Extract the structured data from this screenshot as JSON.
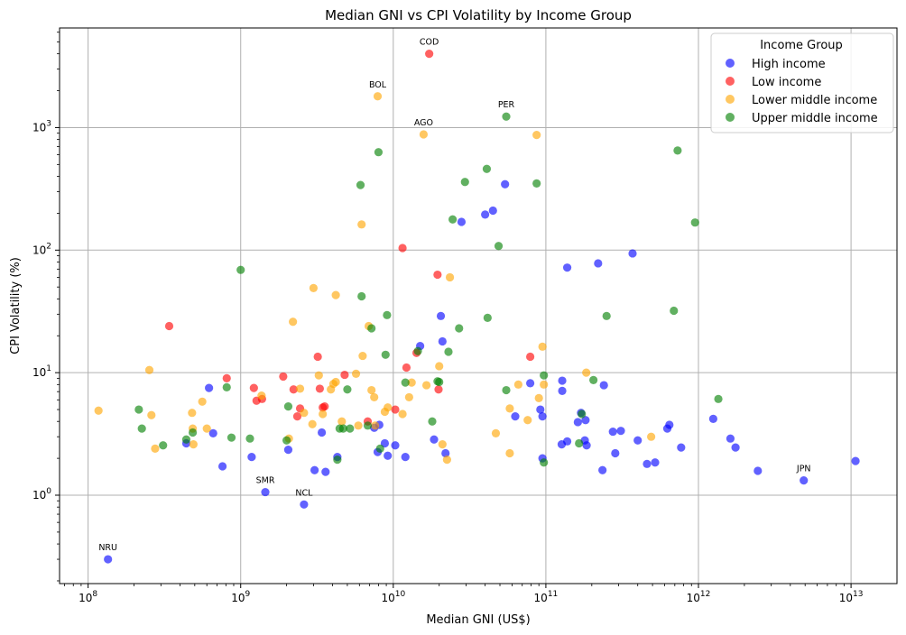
{
  "chart_data": {
    "type": "scatter",
    "title": "Median GNI vs CPI Volatility by Income Group",
    "xlabel": "Median GNI (US$)",
    "ylabel": "CPI Volatility (%)",
    "xscale": "log",
    "yscale": "log",
    "xlim": [
      65000000.0,
      20000000000000.0
    ],
    "ylim": [
      0.19,
      6500
    ],
    "grid": true,
    "legend_title": "Income Group",
    "legend_position": "top-right",
    "x_ticks": [
      {
        "value": 100000000.0,
        "base": "10",
        "exp": "8"
      },
      {
        "value": 1000000000.0,
        "base": "10",
        "exp": "9"
      },
      {
        "value": 10000000000.0,
        "base": "10",
        "exp": "10"
      },
      {
        "value": 100000000000.0,
        "base": "10",
        "exp": "11"
      },
      {
        "value": 1000000000000.0,
        "base": "10",
        "exp": "12"
      },
      {
        "value": 10000000000000.0,
        "base": "10",
        "exp": "13"
      }
    ],
    "y_ticks": [
      {
        "value": 1,
        "base": "10",
        "exp": "0"
      },
      {
        "value": 10,
        "base": "10",
        "exp": "1"
      },
      {
        "value": 100,
        "base": "10",
        "exp": "2"
      },
      {
        "value": 1000,
        "base": "10",
        "exp": "3"
      }
    ],
    "annotations": [
      {
        "text": "COD",
        "x": 17200000000.0,
        "y": 4000
      },
      {
        "text": "BOL",
        "x": 7900000000.0,
        "y": 1800
      },
      {
        "text": "AGO",
        "x": 15800000000.0,
        "y": 880
      },
      {
        "text": "PER",
        "x": 55000000000.0,
        "y": 1230
      },
      {
        "text": "SMR",
        "x": 1450000000.0,
        "y": 1.06
      },
      {
        "text": "NCL",
        "x": 2600000000.0,
        "y": 0.84
      },
      {
        "text": "NRU",
        "x": 135000000.0,
        "y": 0.3
      },
      {
        "text": "JPN",
        "x": 4900000000000.0,
        "y": 1.32
      }
    ],
    "series": [
      {
        "name": "High income",
        "color": "#0000ff",
        "points": [
          [
            135000000.0,
            0.3
          ],
          [
            1450000000.0,
            1.06
          ],
          [
            2600000000.0,
            0.84
          ],
          [
            4900000000000.0,
            1.32
          ],
          [
            10700000000000.0,
            1.9
          ],
          [
            2450000000000.0,
            1.58
          ],
          [
            1750000000000.0,
            2.45
          ],
          [
            1620000000000.0,
            2.9
          ],
          [
            1250000000000.0,
            4.2
          ],
          [
            770000000000.0,
            2.45
          ],
          [
            645000000000.0,
            3.75
          ],
          [
            625000000000.0,
            3.5
          ],
          [
            520000000000.0,
            1.85
          ],
          [
            460000000000.0,
            1.8
          ],
          [
            400000000000.0,
            2.8
          ],
          [
            370000000000.0,
            94
          ],
          [
            310000000000.0,
            3.35
          ],
          [
            285000000000.0,
            2.2
          ],
          [
            275000000000.0,
            3.3
          ],
          [
            240000000000.0,
            7.9
          ],
          [
            235000000000.0,
            1.6
          ],
          [
            220000000000.0,
            78
          ],
          [
            185000000000.0,
            2.55
          ],
          [
            182000000000.0,
            4.1
          ],
          [
            180000000000.0,
            2.8
          ],
          [
            170000000000.0,
            4.7
          ],
          [
            162000000000.0,
            3.95
          ],
          [
            138000000000.0,
            2.75
          ],
          [
            138000000000.0,
            72
          ],
          [
            128000000000.0,
            8.6
          ],
          [
            128000000000.0,
            7.1
          ],
          [
            127000000000.0,
            2.6
          ],
          [
            95000000000.0,
            2.0
          ],
          [
            95000000000.0,
            4.4
          ],
          [
            92000000000.0,
            5.0
          ],
          [
            79000000000.0,
            8.2
          ],
          [
            63000000000.0,
            4.4
          ],
          [
            54000000000.0,
            345
          ],
          [
            45000000000.0,
            210
          ],
          [
            40000000000.0,
            195
          ],
          [
            28000000000.0,
            170
          ],
          [
            22000000000.0,
            2.2
          ],
          [
            21000000000.0,
            18
          ],
          [
            20500000000.0,
            29
          ],
          [
            18500000000.0,
            2.85
          ],
          [
            15000000000.0,
            16.5
          ],
          [
            12000000000.0,
            2.05
          ],
          [
            10300000000.0,
            2.55
          ],
          [
            9200000000.0,
            2.1
          ],
          [
            8800000000.0,
            2.65
          ],
          [
            8100000000.0,
            3.75
          ],
          [
            7900000000.0,
            2.25
          ],
          [
            7500000000.0,
            3.55
          ],
          [
            4300000000.0,
            2.05
          ],
          [
            3600000000.0,
            1.55
          ],
          [
            3400000000.0,
            3.25
          ],
          [
            3050000000.0,
            1.6
          ],
          [
            2050000000.0,
            2.35
          ],
          [
            1180000000.0,
            2.05
          ],
          [
            760000000.0,
            1.72
          ],
          [
            660000000.0,
            3.2
          ],
          [
            620000000.0,
            7.5
          ],
          [
            440000000.0,
            2.65
          ]
        ]
      },
      {
        "name": "Low income",
        "color": "#ff0000",
        "points": [
          [
            17200000000.0,
            4000
          ],
          [
            340000000.0,
            24
          ],
          [
            810000000.0,
            9.0
          ],
          [
            1220000000.0,
            7.5
          ],
          [
            1270000000.0,
            5.9
          ],
          [
            1380000000.0,
            6.1
          ],
          [
            1900000000.0,
            9.3
          ],
          [
            2220000000.0,
            7.3
          ],
          [
            2350000000.0,
            4.4
          ],
          [
            2450000000.0,
            5.1
          ],
          [
            3200000000.0,
            13.5
          ],
          [
            3300000000.0,
            7.4
          ],
          [
            3450000000.0,
            5.2
          ],
          [
            3550000000.0,
            5.3
          ],
          [
            4800000000.0,
            9.6
          ],
          [
            6800000000.0,
            4.0
          ],
          [
            10300000000.0,
            5.0
          ],
          [
            11500000000.0,
            104
          ],
          [
            12200000000.0,
            11
          ],
          [
            14200000000.0,
            14.5
          ],
          [
            19500000000.0,
            63
          ],
          [
            19800000000.0,
            7.3
          ],
          [
            79000000000.0,
            13.5
          ]
        ]
      },
      {
        "name": "Lower middle income",
        "color": "#ffa500",
        "points": [
          [
            7900000000.0,
            1800
          ],
          [
            15800000000.0,
            880
          ],
          [
            87000000000.0,
            870
          ],
          [
            117000000.0,
            4.9
          ],
          [
            252000000.0,
            10.5
          ],
          [
            260000000.0,
            4.5
          ],
          [
            275000000.0,
            2.4
          ],
          [
            480000000.0,
            4.7
          ],
          [
            485000000.0,
            3.5
          ],
          [
            490000000.0,
            2.6
          ],
          [
            560000000.0,
            5.8
          ],
          [
            600000000.0,
            3.5
          ],
          [
            1370000000.0,
            6.5
          ],
          [
            2070000000.0,
            2.9
          ],
          [
            2200000000.0,
            26
          ],
          [
            2450000000.0,
            7.4
          ],
          [
            2600000000.0,
            4.7
          ],
          [
            2950000000.0,
            3.8
          ],
          [
            3000000000.0,
            49
          ],
          [
            3250000000.0,
            9.5
          ],
          [
            3450000000.0,
            4.6
          ],
          [
            3900000000.0,
            7.3
          ],
          [
            4050000000.0,
            8.1
          ],
          [
            4200000000.0,
            8.4
          ],
          [
            4200000000.0,
            43
          ],
          [
            4600000000.0,
            4.0
          ],
          [
            5700000000.0,
            9.8
          ],
          [
            5900000000.0,
            3.7
          ],
          [
            6200000000.0,
            162
          ],
          [
            6300000000.0,
            13.7
          ],
          [
            6900000000.0,
            24
          ],
          [
            7200000000.0,
            7.2
          ],
          [
            7500000000.0,
            6.3
          ],
          [
            7600000000.0,
            3.7
          ],
          [
            8800000000.0,
            4.8
          ],
          [
            9200000000.0,
            5.2
          ],
          [
            11500000000.0,
            4.6
          ],
          [
            12700000000.0,
            6.3
          ],
          [
            13200000000.0,
            8.3
          ],
          [
            16500000000.0,
            7.9
          ],
          [
            20000000000.0,
            11.3
          ],
          [
            21000000000.0,
            2.6
          ],
          [
            22500000000.0,
            1.95
          ],
          [
            23500000000.0,
            60
          ],
          [
            47000000000.0,
            3.2
          ],
          [
            58000000000.0,
            2.2
          ],
          [
            58000000000.0,
            5.1
          ],
          [
            66000000000.0,
            8.0
          ],
          [
            76000000000.0,
            4.1
          ],
          [
            90000000000.0,
            6.2
          ],
          [
            95000000000.0,
            16.3
          ],
          [
            97000000000.0,
            8.0
          ],
          [
            184000000000.0,
            10
          ],
          [
            490000000000.0,
            3.0
          ]
        ]
      },
      {
        "name": "Upper middle income",
        "color": "#008000",
        "points": [
          [
            55000000000.0,
            1230
          ],
          [
            215000000.0,
            5.0
          ],
          [
            225000000.0,
            3.5
          ],
          [
            310000000.0,
            2.55
          ],
          [
            440000000.0,
            2.85
          ],
          [
            485000000.0,
            3.25
          ],
          [
            810000000.0,
            7.6
          ],
          [
            870000000.0,
            2.95
          ],
          [
            1000000000.0,
            69
          ],
          [
            1150000000.0,
            2.9
          ],
          [
            2000000000.0,
            2.8
          ],
          [
            2050000000.0,
            5.3
          ],
          [
            4300000000.0,
            1.95
          ],
          [
            4450000000.0,
            3.5
          ],
          [
            4700000000.0,
            3.5
          ],
          [
            5000000000.0,
            7.3
          ],
          [
            5200000000.0,
            3.5
          ],
          [
            6100000000.0,
            340
          ],
          [
            6200000000.0,
            42
          ],
          [
            6800000000.0,
            3.7
          ],
          [
            7200000000.0,
            23
          ],
          [
            8000000000.0,
            630
          ],
          [
            8200000000.0,
            2.4
          ],
          [
            8900000000.0,
            14
          ],
          [
            9100000000.0,
            29.5
          ],
          [
            12000000000.0,
            8.3
          ],
          [
            14500000000.0,
            15
          ],
          [
            18000000000.0,
            4.0
          ],
          [
            19500000000.0,
            8.5
          ],
          [
            20000000000.0,
            8.4
          ],
          [
            23000000000.0,
            14.8
          ],
          [
            24500000000.0,
            178
          ],
          [
            27000000000.0,
            23
          ],
          [
            29500000000.0,
            360
          ],
          [
            41000000000.0,
            460
          ],
          [
            41500000000.0,
            28
          ],
          [
            49000000000.0,
            108
          ],
          [
            55000000000.0,
            7.2
          ],
          [
            87000000000.0,
            350
          ],
          [
            97000000000.0,
            9.5
          ],
          [
            97000000000.0,
            1.85
          ],
          [
            165000000000.0,
            2.65
          ],
          [
            172000000000.0,
            4.6
          ],
          [
            205000000000.0,
            8.7
          ],
          [
            250000000000.0,
            29
          ],
          [
            690000000000.0,
            32
          ],
          [
            730000000000.0,
            650
          ],
          [
            950000000000.0,
            168
          ],
          [
            1350000000000.0,
            6.1
          ]
        ]
      }
    ]
  }
}
